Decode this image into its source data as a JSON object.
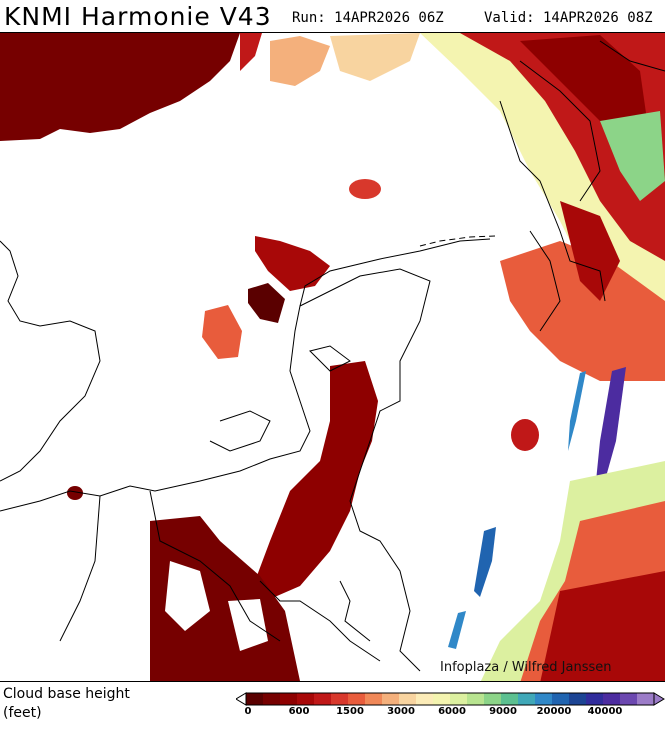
{
  "header": {
    "model_title": "KNMI Harmonie V43",
    "run_label": "Run: 14APR2026 06Z",
    "valid_label": "Valid: 14APR2026 08Z"
  },
  "map": {
    "credit": "Infoplaza / Wilfred Janssen"
  },
  "legend": {
    "title_line1": "Cloud base height",
    "title_line2": "(feet)",
    "colors": [
      "#5a0000",
      "#760000",
      "#8e0000",
      "#a80808",
      "#c01818",
      "#d8382c",
      "#e85c3c",
      "#f08858",
      "#f4b07c",
      "#f8d4a0",
      "#fcecb8",
      "#f4f4b0",
      "#dcf0a0",
      "#b8e490",
      "#8cd488",
      "#5cc090",
      "#40a8b8",
      "#3088c8",
      "#2064b0",
      "#1c4494",
      "#302c9c",
      "#4c2ca0",
      "#6c48b0",
      "#9c7cc8"
    ],
    "ticks": [
      {
        "label": "0",
        "index": 0
      },
      {
        "label": "600",
        "index": 3
      },
      {
        "label": "1500",
        "index": 6
      },
      {
        "label": "3000",
        "index": 9
      },
      {
        "label": "6000",
        "index": 12
      },
      {
        "label": "9000",
        "index": 15
      },
      {
        "label": "20000",
        "index": 18
      },
      {
        "label": "40000",
        "index": 21
      }
    ]
  }
}
